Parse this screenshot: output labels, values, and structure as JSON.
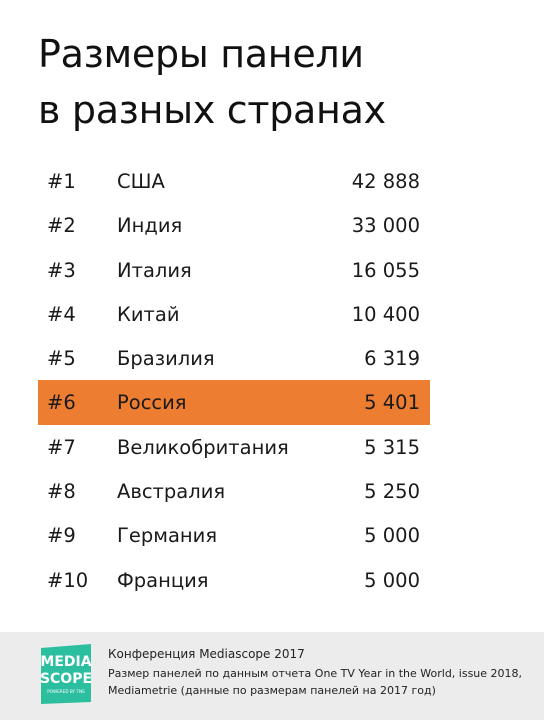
{
  "title": {
    "line1": "Размеры панели",
    "line2": "в разных странах"
  },
  "rows": [
    {
      "rank": "#1",
      "country": "США",
      "value": "42 888"
    },
    {
      "rank": "#2",
      "country": "Индия",
      "value": "33 000"
    },
    {
      "rank": "#3",
      "country": "Италия",
      "value": "16 055"
    },
    {
      "rank": "#4",
      "country": "Китай",
      "value": "10 400"
    },
    {
      "rank": "#5",
      "country": "Бразилия",
      "value": "6 319"
    },
    {
      "rank": "#6",
      "country": "Россия",
      "value": "5 401"
    },
    {
      "rank": "#7",
      "country": "Великобритания",
      "value": "5 315"
    },
    {
      "rank": "#8",
      "country": "Австралия",
      "value": "5 250"
    },
    {
      "rank": "#9",
      "country": "Германия",
      "value": "5 000"
    },
    {
      "rank": "#10",
      "country": "Франция",
      "value": "5 000"
    }
  ],
  "highlight_color": "#ed7d31",
  "logo": {
    "icon": "mediascope-logo",
    "color": "#2bbfa0",
    "text_top": "MEDIA",
    "text_bottom": "SCOPE",
    "tagline": "POWERED BY TNS"
  },
  "footer": {
    "line1": "Конференция Mediascope 2017",
    "line2": "Размер панелей по данным отчета One TV Year in the World, issue 2018,",
    "line3": "Mediametrie (данные по размерам панелей на 2017 год)"
  }
}
